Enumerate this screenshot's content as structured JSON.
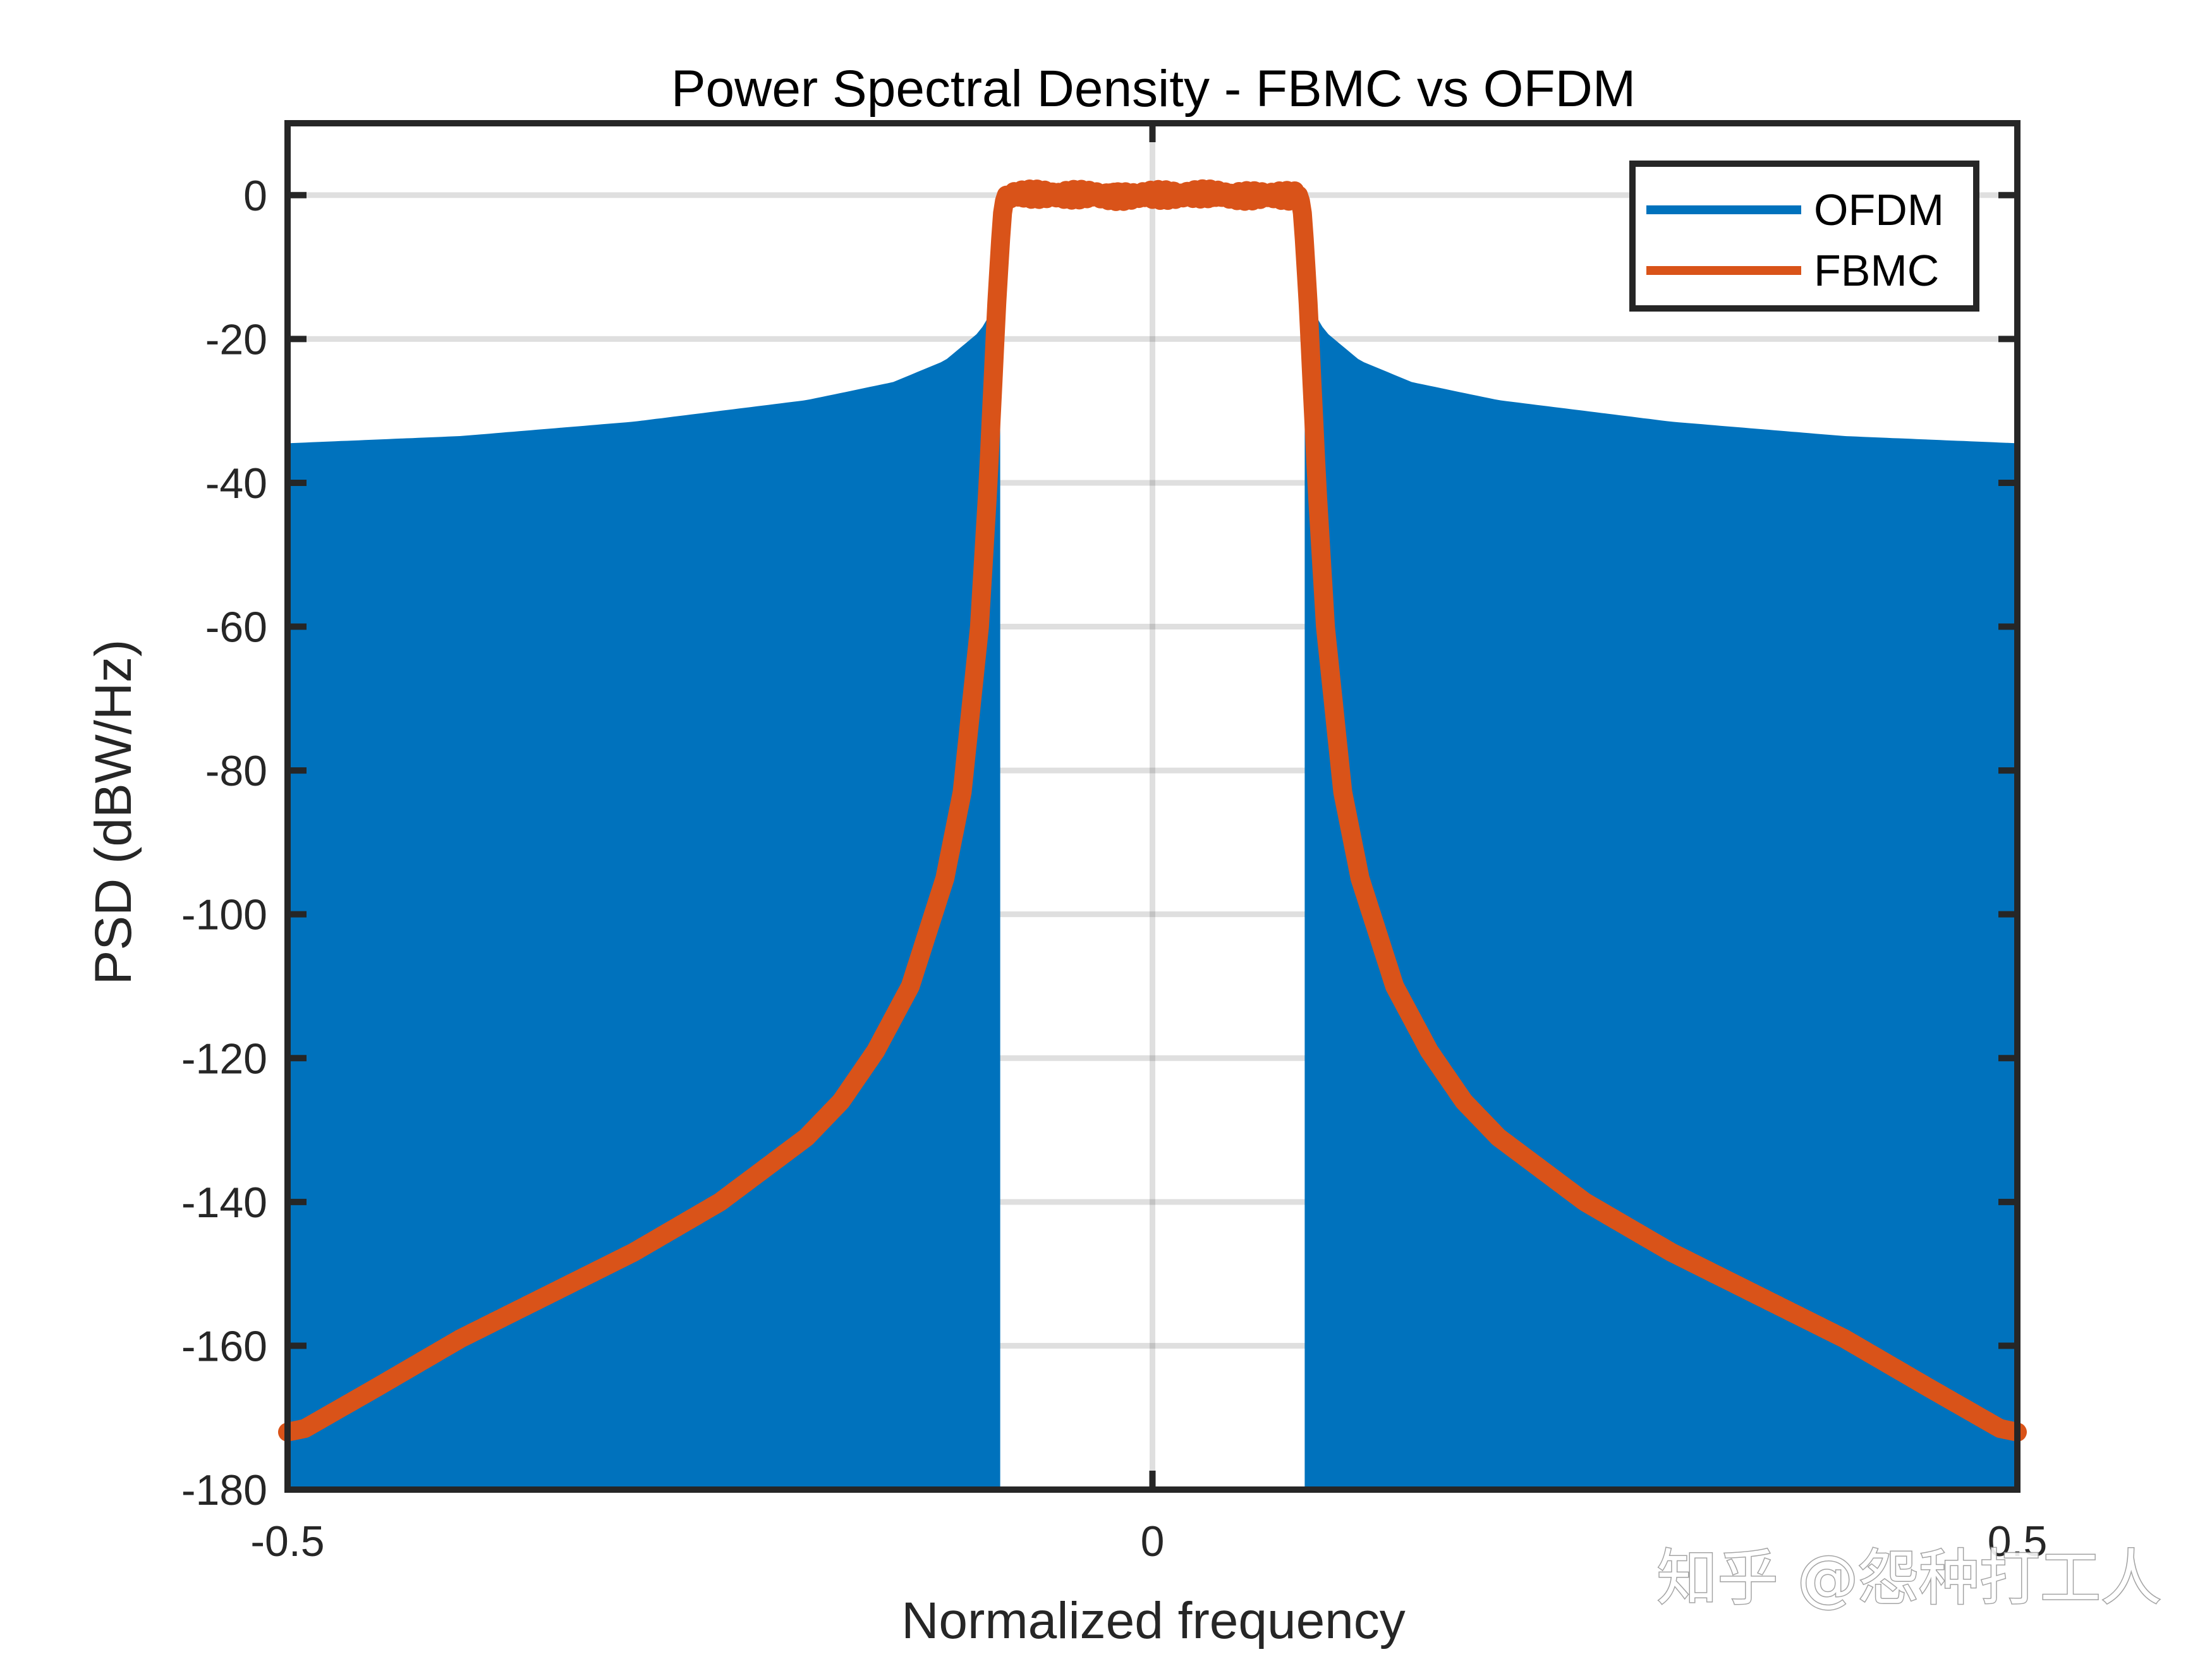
{
  "watermark": "知乎 @怨种打工人",
  "chart_data": {
    "type": "line",
    "title": "Power Spectral Density - FBMC vs OFDM",
    "xlabel": "Normalized frequency",
    "ylabel": "PSD (dBW/Hz)",
    "xlim": [
      -0.5,
      0.5
    ],
    "ylim": [
      -180,
      10
    ],
    "xticks": [
      -0.5,
      0,
      0.5
    ],
    "xtick_labels": [
      "-0.5",
      "0",
      "0.5"
    ],
    "yticks": [
      0,
      -20,
      -40,
      -60,
      -80,
      -100,
      -120,
      -140,
      -160,
      -180
    ],
    "ytick_labels": [
      "0",
      "-20",
      "-40",
      "-60",
      "-80",
      "-100",
      "-120",
      "-140",
      "-160",
      "-180"
    ],
    "grid": true,
    "legend_position": "top-right",
    "series": [
      {
        "name": "OFDM",
        "color": "#0072BD",
        "style": "dense oscillating sidelobes filling from envelope to floor",
        "envelope_x": [
          -0.5,
          -0.4,
          -0.3,
          -0.2,
          -0.15,
          -0.12,
          -0.1,
          -0.09,
          -0.085,
          0.085,
          0.09,
          0.1,
          0.12,
          0.15,
          0.2,
          0.3,
          0.4,
          0.5
        ],
        "envelope_y": [
          -34.5,
          -33.5,
          -31.5,
          -28.5,
          -26,
          -23,
          -19,
          -15,
          -10,
          -10,
          -15,
          -19,
          -23,
          -26,
          -28.5,
          -31.5,
          -33.5,
          -34.5
        ],
        "floor_y": -180,
        "inband_range": [
          -0.085,
          0.085
        ],
        "inband_level": 0
      },
      {
        "name": "FBMC",
        "color": "#D95319",
        "x": [
          -0.5,
          -0.49,
          -0.45,
          -0.4,
          -0.35,
          -0.3,
          -0.25,
          -0.2,
          -0.18,
          -0.16,
          -0.14,
          -0.12,
          -0.11,
          -0.1,
          -0.095,
          -0.09,
          -0.087,
          -0.085,
          0,
          0.085,
          0.087,
          0.09,
          0.095,
          0.1,
          0.11,
          0.12,
          0.14,
          0.16,
          0.18,
          0.2,
          0.25,
          0.3,
          0.35,
          0.4,
          0.45,
          0.49,
          0.5
        ],
        "y": [
          -172,
          -171.5,
          -166,
          -159,
          -153,
          -147,
          -140,
          -131,
          -126,
          -119,
          -110,
          -95,
          -83,
          -60,
          -40,
          -15,
          -3,
          0,
          0,
          0,
          -3,
          -15,
          -40,
          -60,
          -83,
          -95,
          -110,
          -119,
          -126,
          -131,
          -140,
          -147,
          -153,
          -159,
          -166,
          -171.5,
          -172
        ]
      }
    ]
  }
}
